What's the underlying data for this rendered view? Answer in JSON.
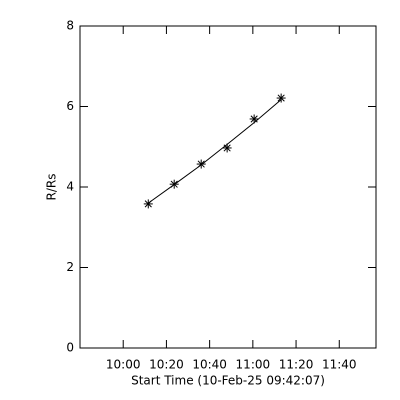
{
  "chart_data": {
    "type": "scatter",
    "x_label": "Start Time (10-Feb-25 09:42:07)",
    "y_label": "R/Rs",
    "x": [
      611.6,
      623.6,
      636.1,
      648.1,
      660.6,
      673.1
    ],
    "series": [
      {
        "values": [
          3.58,
          4.07,
          4.57,
          4.97,
          5.69,
          6.21
        ],
        "marker": "star",
        "color": "#000000"
      },
      {
        "values": [
          3.6,
          4.06,
          4.55,
          5.06,
          5.6,
          6.17
        ],
        "marker": "none",
        "line": true,
        "color": "#000000"
      }
    ],
    "xlim": [
      580,
      717
    ],
    "xticks": [
      {
        "value": 600,
        "label": "10:00"
      },
      {
        "value": 620,
        "label": "10:20"
      },
      {
        "value": 640,
        "label": "10:40"
      },
      {
        "value": 660,
        "label": "11:00"
      },
      {
        "value": 680,
        "label": "11:20"
      },
      {
        "value": 700,
        "label": "11:40"
      }
    ],
    "ylim": [
      0,
      8
    ],
    "yticks": [
      0,
      2,
      4,
      6,
      8
    ]
  }
}
